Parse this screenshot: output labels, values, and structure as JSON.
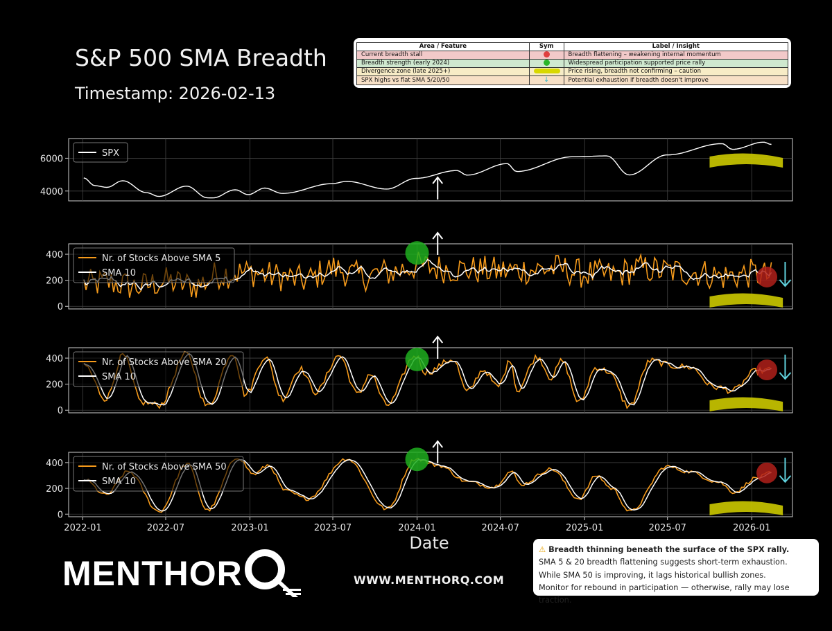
{
  "header": {
    "title": "S&P 500 SMA Breadth",
    "timestamp": "Timestamp: 2026-02-13"
  },
  "insight_table": {
    "columns": [
      "Area / Feature",
      "Sym",
      "Label / Insight"
    ],
    "rows": [
      {
        "area": "Current breadth stall",
        "sym": "red-dot-icon",
        "insight": "Breadth flattening – weakening internal momentum",
        "bg": "#f2c9c9"
      },
      {
        "area": "Breadth strength (early 2024)",
        "sym": "green-dot-icon",
        "insight": "Widespread participation supported price rally",
        "bg": "#cfe8cf"
      },
      {
        "area": "Divergence zone (late 2025+)",
        "sym": "yellow-band-icon",
        "insight": "Price rising, breadth not confirming – caution",
        "bg": "#f7ecc6"
      },
      {
        "area": "SPX highs vs flat SMA 5/20/50",
        "sym": "down-arrow-icon",
        "insight": "Potential exhaustion if breadth doesn't improve",
        "bg": "#f7e0c6"
      }
    ]
  },
  "chart_data": [
    {
      "type": "line",
      "series": [
        {
          "name": "SPX",
          "color": "#ffffff"
        }
      ],
      "x_range": [
        "2021-12-01",
        "2026-03-31"
      ],
      "ylim": [
        3400,
        7200
      ],
      "yticks": [
        4000,
        6000
      ],
      "grid": true,
      "legend": "top-left",
      "anchors": [
        [
          "2022-01-03",
          4800
        ],
        [
          "2022-01-27",
          4330
        ],
        [
          "2022-02-23",
          4225
        ],
        [
          "2022-03-29",
          4630
        ],
        [
          "2022-05-20",
          3900
        ],
        [
          "2022-06-16",
          3670
        ],
        [
          "2022-08-16",
          4300
        ],
        [
          "2022-09-30",
          3585
        ],
        [
          "2022-10-12",
          3580
        ],
        [
          "2022-11-30",
          4080
        ],
        [
          "2022-12-28",
          3780
        ],
        [
          "2023-02-02",
          4180
        ],
        [
          "2023-03-13",
          3855
        ],
        [
          "2023-06-30",
          4450
        ],
        [
          "2023-07-31",
          4590
        ],
        [
          "2023-10-27",
          4120
        ],
        [
          "2023-12-29",
          4770
        ],
        [
          "2024-03-28",
          5250
        ],
        [
          "2024-04-19",
          4970
        ],
        [
          "2024-07-16",
          5670
        ],
        [
          "2024-08-05",
          5190
        ],
        [
          "2024-12-06",
          6090
        ],
        [
          "2025-02-19",
          6140
        ],
        [
          "2025-04-08",
          4980
        ],
        [
          "2025-06-30",
          6200
        ],
        [
          "2025-10-28",
          6890
        ],
        [
          "2025-11-20",
          6540
        ],
        [
          "2026-01-27",
          6980
        ],
        [
          "2026-02-13",
          6840
        ]
      ],
      "annotations": {
        "arrow": {
          "date": "2024-02-15",
          "dir": "up"
        },
        "divergence_band": [
          "2025-10-01",
          "2026-03-10"
        ]
      }
    },
    {
      "type": "line",
      "series": [
        {
          "name": "Nr. of Stocks Above SMA 5",
          "color": "#f59a1b"
        },
        {
          "name": "SMA 10",
          "color": "#ffffff"
        }
      ],
      "x_range": [
        "2021-12-01",
        "2026-03-31"
      ],
      "ylim": [
        -20,
        480
      ],
      "yticks": [
        0,
        200,
        400
      ],
      "grid": true,
      "legend": "top-left",
      "anchors": [
        [
          "2022-01-03",
          170
        ],
        [
          "2022-03-01",
          180
        ],
        [
          "2022-05-01",
          150
        ],
        [
          "2022-07-01",
          190
        ],
        [
          "2022-09-01",
          160
        ],
        [
          "2022-11-01",
          250
        ],
        [
          "2023-01-01",
          260
        ],
        [
          "2023-03-01",
          230
        ],
        [
          "2023-05-01",
          200
        ],
        [
          "2023-07-01",
          290
        ],
        [
          "2023-09-01",
          230
        ],
        [
          "2023-11-01",
          260
        ],
        [
          "2024-01-01",
          310
        ],
        [
          "2024-03-01",
          290
        ],
        [
          "2024-05-01",
          280
        ],
        [
          "2024-07-01",
          270
        ],
        [
          "2024-09-01",
          280
        ],
        [
          "2024-11-01",
          290
        ],
        [
          "2025-01-01",
          250
        ],
        [
          "2025-03-01",
          240
        ],
        [
          "2025-05-01",
          290
        ],
        [
          "2025-07-01",
          270
        ],
        [
          "2025-09-01",
          260
        ],
        [
          "2025-11-01",
          230
        ],
        [
          "2026-01-01",
          250
        ],
        [
          "2026-02-13",
          230
        ]
      ],
      "noise": 115,
      "annotations": {
        "green_circle": [
          "2024-01-01",
          410
        ],
        "red_circle": [
          "2026-02-03",
          225
        ],
        "up_arrow": "2024-02-15",
        "down_arrow": "2026-03-15",
        "divergence_band": [
          "2025-10-01",
          "2026-03-10"
        ]
      }
    },
    {
      "type": "line",
      "series": [
        {
          "name": "Nr. of Stocks Above SMA 20",
          "color": "#f59a1b"
        },
        {
          "name": "SMA 10",
          "color": "#ffffff"
        }
      ],
      "x_range": [
        "2021-12-01",
        "2026-03-31"
      ],
      "ylim": [
        -20,
        480
      ],
      "yticks": [
        0,
        200,
        400
      ],
      "grid": true,
      "legend": "top-left",
      "anchors": [
        [
          "2022-01-03",
          350
        ],
        [
          "2022-02-20",
          90
        ],
        [
          "2022-03-30",
          420
        ],
        [
          "2022-05-10",
          60
        ],
        [
          "2022-06-17",
          40
        ],
        [
          "2022-08-15",
          430
        ],
        [
          "2022-09-30",
          30
        ],
        [
          "2022-11-25",
          440
        ],
        [
          "2022-12-22",
          120
        ],
        [
          "2023-02-03",
          410
        ],
        [
          "2023-03-13",
          90
        ],
        [
          "2023-04-20",
          320
        ],
        [
          "2023-05-25",
          140
        ],
        [
          "2023-07-15",
          420
        ],
        [
          "2023-08-25",
          120
        ],
        [
          "2023-09-20",
          280
        ],
        [
          "2023-10-27",
          40
        ],
        [
          "2023-12-29",
          420
        ],
        [
          "2024-01-20",
          290
        ],
        [
          "2024-03-20",
          390
        ],
        [
          "2024-04-19",
          140
        ],
        [
          "2024-05-25",
          310
        ],
        [
          "2024-06-25",
          180
        ],
        [
          "2024-07-25",
          390
        ],
        [
          "2024-08-05",
          150
        ],
        [
          "2024-09-20",
          410
        ],
        [
          "2024-10-20",
          250
        ],
        [
          "2024-11-12",
          380
        ],
        [
          "2024-12-20",
          60
        ],
        [
          "2025-01-27",
          330
        ],
        [
          "2025-02-20",
          300
        ],
        [
          "2025-04-08",
          30
        ],
        [
          "2025-05-25",
          380
        ],
        [
          "2025-07-15",
          340
        ],
        [
          "2025-08-20",
          330
        ],
        [
          "2025-10-10",
          180
        ],
        [
          "2025-11-20",
          150
        ],
        [
          "2026-01-10",
          300
        ],
        [
          "2026-02-13",
          310
        ]
      ],
      "noise": 25,
      "annotations": {
        "green_circle": [
          "2024-01-01",
          390
        ],
        "red_circle": [
          "2026-02-03",
          310
        ],
        "up_arrow": "2024-02-15",
        "down_arrow": "2026-03-15",
        "divergence_band": [
          "2025-10-01",
          "2026-03-10"
        ]
      }
    },
    {
      "type": "line",
      "series": [
        {
          "name": "Nr. of Stocks Above SMA 50",
          "color": "#f59a1b"
        },
        {
          "name": "SMA 10",
          "color": "#ffffff"
        }
      ],
      "x_range": [
        "2021-12-01",
        "2026-03-31"
      ],
      "ylim": [
        -20,
        480
      ],
      "yticks": [
        0,
        200,
        400
      ],
      "grid": true,
      "legend": "top-left",
      "anchors": [
        [
          "2022-01-03",
          270
        ],
        [
          "2022-02-20",
          150
        ],
        [
          "2022-04-10",
          330
        ],
        [
          "2022-06-17",
          20
        ],
        [
          "2022-08-17",
          390
        ],
        [
          "2022-09-30",
          30
        ],
        [
          "2022-12-05",
          440
        ],
        [
          "2023-01-10",
          310
        ],
        [
          "2023-02-10",
          380
        ],
        [
          "2023-03-20",
          180
        ],
        [
          "2023-05-05",
          120
        ],
        [
          "2023-07-31",
          430
        ],
        [
          "2023-10-27",
          40
        ],
        [
          "2023-12-29",
          430
        ],
        [
          "2024-02-15",
          380
        ],
        [
          "2024-04-22",
          250
        ],
        [
          "2024-06-15",
          210
        ],
        [
          "2024-07-25",
          330
        ],
        [
          "2024-08-15",
          230
        ],
        [
          "2024-10-20",
          350
        ],
        [
          "2024-12-20",
          120
        ],
        [
          "2025-01-27",
          300
        ],
        [
          "2025-03-01",
          200
        ],
        [
          "2025-04-10",
          20
        ],
        [
          "2025-06-30",
          370
        ],
        [
          "2025-08-15",
          330
        ],
        [
          "2025-10-20",
          250
        ],
        [
          "2025-11-24",
          170
        ],
        [
          "2026-01-10",
          280
        ],
        [
          "2026-02-13",
          320
        ]
      ],
      "noise": 14,
      "annotations": {
        "green_circle": [
          "2024-01-01",
          425
        ],
        "red_circle": [
          "2026-02-03",
          320
        ],
        "up_arrow": "2024-02-15",
        "down_arrow": "2026-03-15",
        "divergence_band": [
          "2025-10-01",
          "2026-03-10"
        ]
      }
    }
  ],
  "x_axis": {
    "label": "Date",
    "ticks": [
      "2022-01",
      "2022-07",
      "2023-01",
      "2023-07",
      "2024-01",
      "2024-07",
      "2025-01",
      "2025-07",
      "2026-01"
    ]
  },
  "colors": {
    "breadth": "#f59a1b",
    "sma": "#ffffff",
    "strength": "#1fae1f",
    "stall": "#b0201a",
    "divergence": "#c8c400",
    "arrow": "#5fd0dc"
  },
  "footer": {
    "logo_text": "MENTHOR",
    "logo_q": "Q",
    "url": "WWW.MENTHORQ.COM",
    "note_headline": "Breadth thinning beneath the surface of the SPX rally.",
    "note_lines": [
      "SMA 5 & 20 breadth flattening suggests short-term exhaustion.",
      "While SMA 50 is improving, it lags historical bullish zones.",
      "Monitor for rebound in participation — otherwise, rally may lose traction."
    ]
  }
}
